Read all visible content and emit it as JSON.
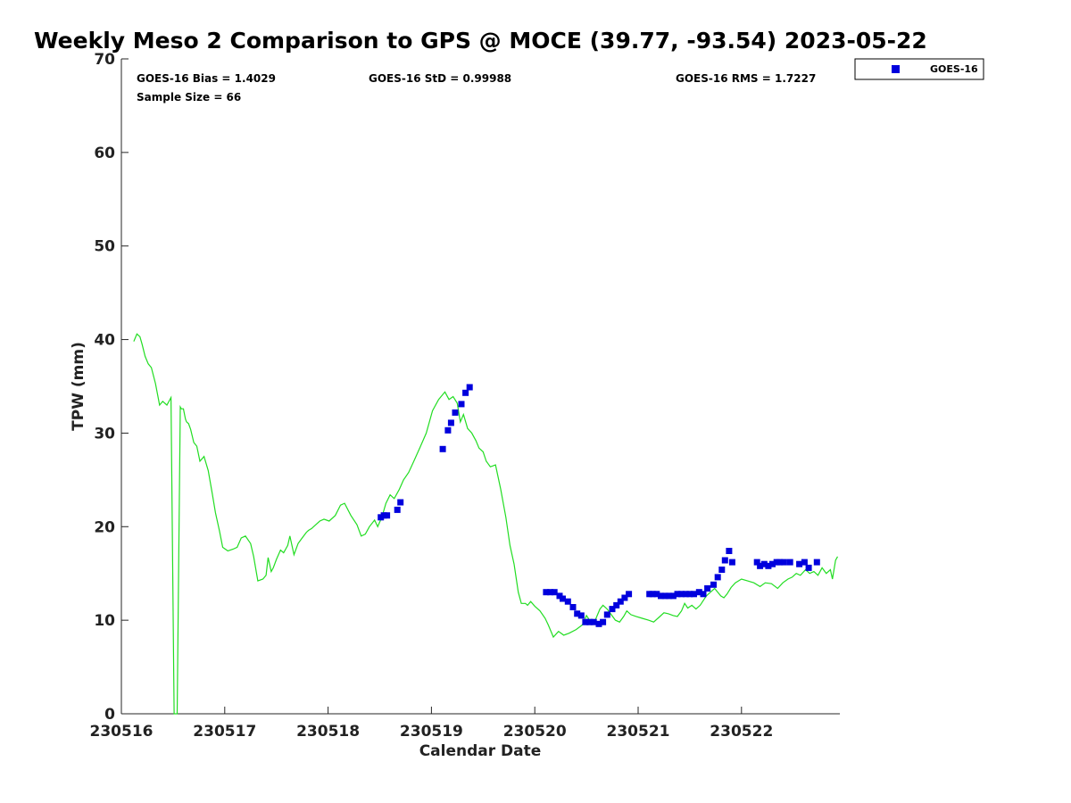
{
  "chart_data": {
    "type": "scatter",
    "title": "Weekly Meso 2 Comparison to GPS @ MOCE (39.77, -93.54) 2023-05-22",
    "xlabel": "Calendar Date",
    "ylabel": "TPW (mm)",
    "xlim": [
      230516,
      230522.93
    ],
    "ylim": [
      0,
      70
    ],
    "x_ticks": [
      "230516",
      "230517",
      "230518",
      "230519",
      "230520",
      "230521",
      "230522"
    ],
    "y_ticks": [
      "0",
      "10",
      "20",
      "30",
      "40",
      "50",
      "60",
      "70"
    ],
    "stats": {
      "bias": "GOES-16 Bias = 1.4029",
      "std": "GOES-16 StD = 0.99988",
      "rms": "GOES-16 RMS = 1.7227",
      "sample": "Sample Size = 66"
    },
    "legend": {
      "position": "top-right",
      "entries": [
        "GOES-16"
      ]
    },
    "grid": false,
    "series": [
      {
        "name": "GOES-16",
        "kind": "scatter",
        "color": "#0000dd",
        "x": [
          230518.51,
          230518.54,
          230518.57,
          230518.67,
          230518.7,
          230519.11,
          230519.16,
          230519.19,
          230519.23,
          230519.29,
          230519.33,
          230519.37,
          230520.11,
          230520.15,
          230520.19,
          230520.24,
          230520.27,
          230520.32,
          230520.37,
          230520.41,
          230520.45,
          230520.49,
          230520.53,
          230520.57,
          230520.62,
          230520.66,
          230520.7,
          230520.75,
          230520.79,
          230520.83,
          230520.87,
          230520.91,
          230521.11,
          230521.14,
          230521.18,
          230521.22,
          230521.26,
          230521.3,
          230521.34,
          230521.38,
          230521.42,
          230521.46,
          230521.5,
          230521.54,
          230521.59,
          230521.63,
          230521.67,
          230521.73,
          230521.77,
          230521.81,
          230521.84,
          230521.88,
          230521.91,
          230522.15,
          230522.18,
          230522.22,
          230522.26,
          230522.3,
          230522.34,
          230522.37,
          230522.41,
          230522.47,
          230522.56,
          230522.61,
          230522.65,
          230522.73
        ],
        "y": [
          21.0,
          21.2,
          21.2,
          21.8,
          22.6,
          28.3,
          30.3,
          31.1,
          32.2,
          33.1,
          34.3,
          34.9,
          13.0,
          13.0,
          13.0,
          12.6,
          12.3,
          12.0,
          11.4,
          10.7,
          10.5,
          9.8,
          9.8,
          9.8,
          9.6,
          9.8,
          10.6,
          11.2,
          11.6,
          12.0,
          12.4,
          12.8,
          12.8,
          12.8,
          12.8,
          12.6,
          12.6,
          12.6,
          12.6,
          12.8,
          12.8,
          12.8,
          12.8,
          12.8,
          13.0,
          12.8,
          13.4,
          13.8,
          14.6,
          15.4,
          16.4,
          17.4,
          16.2,
          16.2,
          15.8,
          16.0,
          15.8,
          16.0,
          16.2,
          16.2,
          16.2,
          16.2,
          16.0,
          16.2,
          15.6,
          16.2
        ]
      },
      {
        "name": "GPS",
        "kind": "line",
        "color": "#22dd22",
        "x": [
          230516.12,
          230516.15,
          230516.18,
          230516.2,
          230516.23,
          230516.26,
          230516.29,
          230516.33,
          230516.37,
          230516.4,
          230516.44,
          230516.48,
          230516.51,
          230516.54,
          230516.57,
          230516.58,
          230516.6,
          230516.62,
          230516.63,
          230516.65,
          230516.67,
          230516.7,
          230516.73,
          230516.76,
          230516.8,
          230516.84,
          230516.88,
          230516.91,
          230516.95,
          230516.98,
          230517.03,
          230517.08,
          230517.12,
          230517.16,
          230517.2,
          230517.25,
          230517.28,
          230517.32,
          230517.37,
          230517.4,
          230517.42,
          230517.45,
          230517.47,
          230517.5,
          230517.54,
          230517.57,
          230517.61,
          230517.63,
          230517.67,
          230517.71,
          230517.75,
          230517.79,
          230517.81,
          230517.84,
          230517.88,
          230517.92,
          230517.96,
          230518.01,
          230518.07,
          230518.12,
          230518.16,
          230518.22,
          230518.28,
          230518.32,
          230518.36,
          230518.4,
          230518.45,
          230518.48,
          230518.52,
          230518.56,
          230518.6,
          230518.64,
          230518.69,
          230518.73,
          230518.78,
          230518.83,
          230518.89,
          230518.95,
          230519.01,
          230519.07,
          230519.13,
          230519.17,
          230519.21,
          230519.25,
          230519.28,
          230519.31,
          230519.35,
          230519.39,
          230519.43,
          230519.46,
          230519.5,
          230519.53,
          230519.57,
          230519.62,
          230519.67,
          230519.72,
          230519.76,
          230519.8,
          230519.84,
          230519.87,
          230519.91,
          230519.93,
          230519.96,
          230520.0,
          230520.05,
          230520.1,
          230520.13,
          230520.18,
          230520.23,
          230520.28,
          230520.33,
          230520.4,
          230520.46,
          230520.5,
          230520.53,
          230520.57,
          230520.6,
          230520.63,
          230520.66,
          230520.7,
          230520.74,
          230520.78,
          230520.82,
          230520.86,
          230520.89,
          230520.93,
          230520.98,
          230521.04,
          230521.1,
          230521.15,
          230521.2,
          230521.25,
          230521.29,
          230521.34,
          230521.38,
          230521.42,
          230521.45,
          230521.48,
          230521.52,
          230521.56,
          230521.6,
          230521.63,
          230521.66,
          230521.7,
          230521.74,
          230521.77,
          230521.8,
          230521.83,
          230521.86,
          230521.9,
          230521.94,
          230522.0,
          230522.06,
          230522.12,
          230522.18,
          230522.23,
          230522.29,
          230522.35,
          230522.4,
          230522.45,
          230522.49,
          230522.53,
          230522.57,
          230522.62,
          230522.66,
          230522.7,
          230522.74,
          230522.78,
          230522.82,
          230522.86,
          230522.88,
          230522.91,
          230522.93
        ],
        "y": [
          39.8,
          40.6,
          40.3,
          39.5,
          38.2,
          37.4,
          37.0,
          35.3,
          33.0,
          33.4,
          33.0,
          33.8,
          0.0,
          0.0,
          32.8,
          32.6,
          32.6,
          31.5,
          31.2,
          31.0,
          30.4,
          29.0,
          28.6,
          27.0,
          27.5,
          26.0,
          23.5,
          21.5,
          19.5,
          17.8,
          17.4,
          17.6,
          17.8,
          18.8,
          19.0,
          18.2,
          16.8,
          14.2,
          14.4,
          14.8,
          16.7,
          15.2,
          15.6,
          16.5,
          17.5,
          17.2,
          18.0,
          19.0,
          17.0,
          18.2,
          18.8,
          19.4,
          19.6,
          19.8,
          20.2,
          20.6,
          20.8,
          20.6,
          21.2,
          22.3,
          22.5,
          21.2,
          20.2,
          19.0,
          19.2,
          20.0,
          20.7,
          20.0,
          21.0,
          22.5,
          23.4,
          23.0,
          24.0,
          25.0,
          25.8,
          27.0,
          28.5,
          30.0,
          32.4,
          33.6,
          34.4,
          33.6,
          33.9,
          33.2,
          31.2,
          32.0,
          30.5,
          30.0,
          29.2,
          28.4,
          28.0,
          27.0,
          26.4,
          26.6,
          24.0,
          21.0,
          18.0,
          16.0,
          13.0,
          11.8,
          11.8,
          11.6,
          12.0,
          11.5,
          11.0,
          10.2,
          9.5,
          8.2,
          8.8,
          8.4,
          8.6,
          9.0,
          9.5,
          10.5,
          10.0,
          9.6,
          10.4,
          11.2,
          11.6,
          11.2,
          10.6,
          10.0,
          9.8,
          10.4,
          11.0,
          10.6,
          10.4,
          10.2,
          10.0,
          9.8,
          10.3,
          10.8,
          10.7,
          10.5,
          10.4,
          11.0,
          11.8,
          11.3,
          11.6,
          11.2,
          11.6,
          12.1,
          12.6,
          13.0,
          13.4,
          13.0,
          12.6,
          12.4,
          12.8,
          13.5,
          14.0,
          14.4,
          14.2,
          14.0,
          13.6,
          14.0,
          13.9,
          13.4,
          14.0,
          14.4,
          14.6,
          15.0,
          14.8,
          15.4,
          15.0,
          15.2,
          14.8,
          15.6,
          15.0,
          15.4,
          14.4,
          16.4,
          16.8
        ]
      }
    ]
  }
}
